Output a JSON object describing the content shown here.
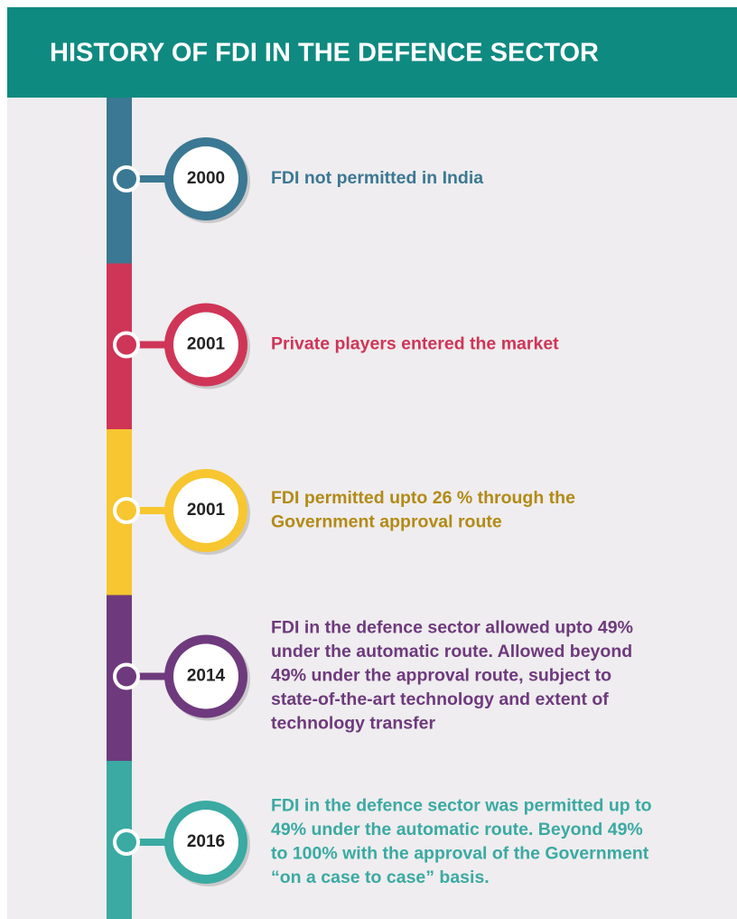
{
  "header": {
    "title": "HISTORY OF FDI IN THE DEFENCE SECTOR"
  },
  "events": [
    {
      "year": "2000",
      "color": "#3b7893",
      "text_color": "#3b7893",
      "lines": [
        "FDI not permitted in India"
      ]
    },
    {
      "year": "2001",
      "color": "#cf3557",
      "text_color": "#cf3557",
      "lines": [
        "Private players entered the market"
      ]
    },
    {
      "year": "2001",
      "color": "#f7c630",
      "text_color": "#b38a16",
      "lines": [
        "FDI permitted upto 26 % through the",
        "Government approval route"
      ]
    },
    {
      "year": "2014",
      "color": "#6e3a7d",
      "text_color": "#6e3a7d",
      "lines": [
        "FDI in the defence sector allowed upto 49%",
        "under the automatic route. Allowed  beyond",
        "49% under the approval route, subject to",
        "state-of-the-art technology and extent of",
        "technology transfer"
      ]
    },
    {
      "year": "2016",
      "color": "#3aaaa3",
      "text_color": "#3aaaa3",
      "lines": [
        "FDI in the defence sector was permitted up to",
        "49% under the automatic route. Beyond 49%",
        "to 100% with the approval of the Government",
        "“on a case to case” basis."
      ]
    }
  ]
}
